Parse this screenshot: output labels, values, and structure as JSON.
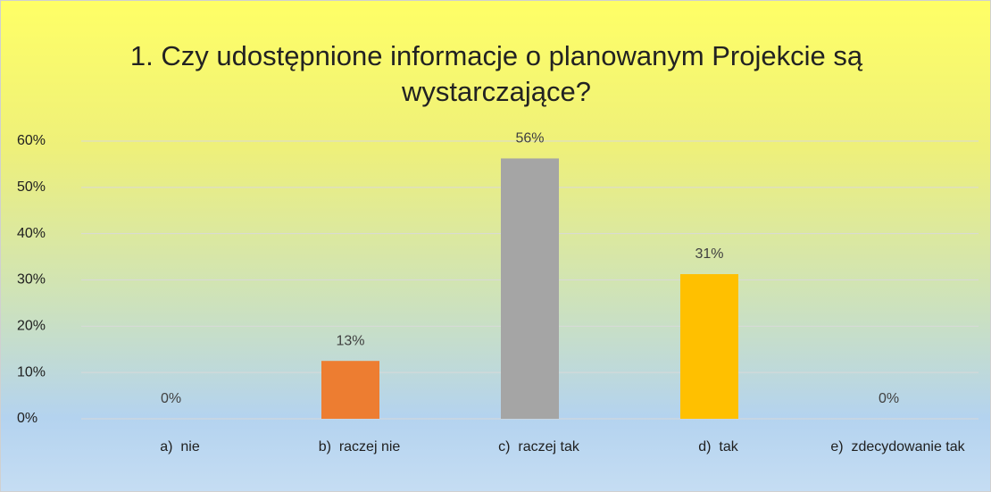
{
  "chart_data": {
    "type": "bar",
    "title": "1. Czy udostępnione informacje o planowanym Projekcie są wystarczające?",
    "categories": [
      "a)  nie",
      "b)  raczej nie",
      "c)  raczej tak",
      "d)  tak",
      "e)  zdecydowanie tak"
    ],
    "values": [
      0,
      12.5,
      56.25,
      31.25,
      0
    ],
    "value_labels": [
      "0%",
      "13%",
      "56%",
      "31%",
      "0%"
    ],
    "colors": [
      "#5b9bd5",
      "#ed7d31",
      "#a5a5a5",
      "#ffc000",
      "#4472c4"
    ],
    "ylim": [
      0,
      60
    ],
    "yticks": [
      {
        "value": 0,
        "label": "0%"
      },
      {
        "value": 10,
        "label": "10%"
      },
      {
        "value": 20,
        "label": "20%"
      },
      {
        "value": 30,
        "label": "30%"
      },
      {
        "value": 40,
        "label": "40%"
      },
      {
        "value": 50,
        "label": "50%"
      },
      {
        "value": 60,
        "label": "60%"
      }
    ],
    "grid": true
  }
}
